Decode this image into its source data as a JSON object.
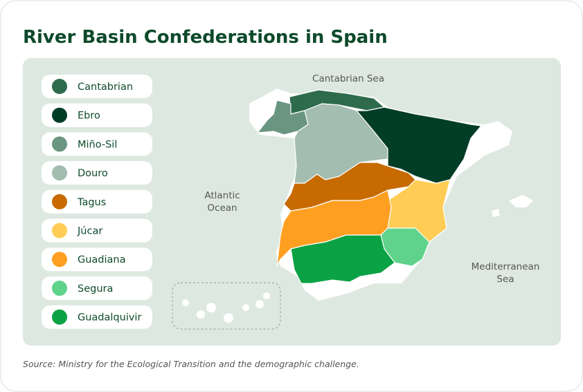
{
  "title": "River Basin Confederations in Spain",
  "map_labels": [
    {
      "lines": [
        "Cantabrian Sea"
      ]
    },
    {
      "lines": [
        "Atlantic",
        "Ocean"
      ]
    },
    {
      "lines": [
        "Mediterranean",
        "Sea"
      ]
    }
  ],
  "basins": [
    {
      "name": "Cantabrian",
      "color": "#2e6b4c"
    },
    {
      "name": "Ebro",
      "color": "#023d27"
    },
    {
      "name": "Miño-Sil",
      "color": "#6a9580"
    },
    {
      "name": "Douro",
      "color": "#a3bdb0"
    },
    {
      "name": "Tagus",
      "color": "#c76a00"
    },
    {
      "name": "Júcar",
      "color": "#ffcd55"
    },
    {
      "name": "Guadiana",
      "color": "#ff9f22"
    },
    {
      "name": "Segura",
      "color": "#5fd28c"
    },
    {
      "name": "Guadalquivir",
      "color": "#0aa244"
    }
  ],
  "source": "Source: Ministry for the Ecological Transition and the demographic challenge."
}
